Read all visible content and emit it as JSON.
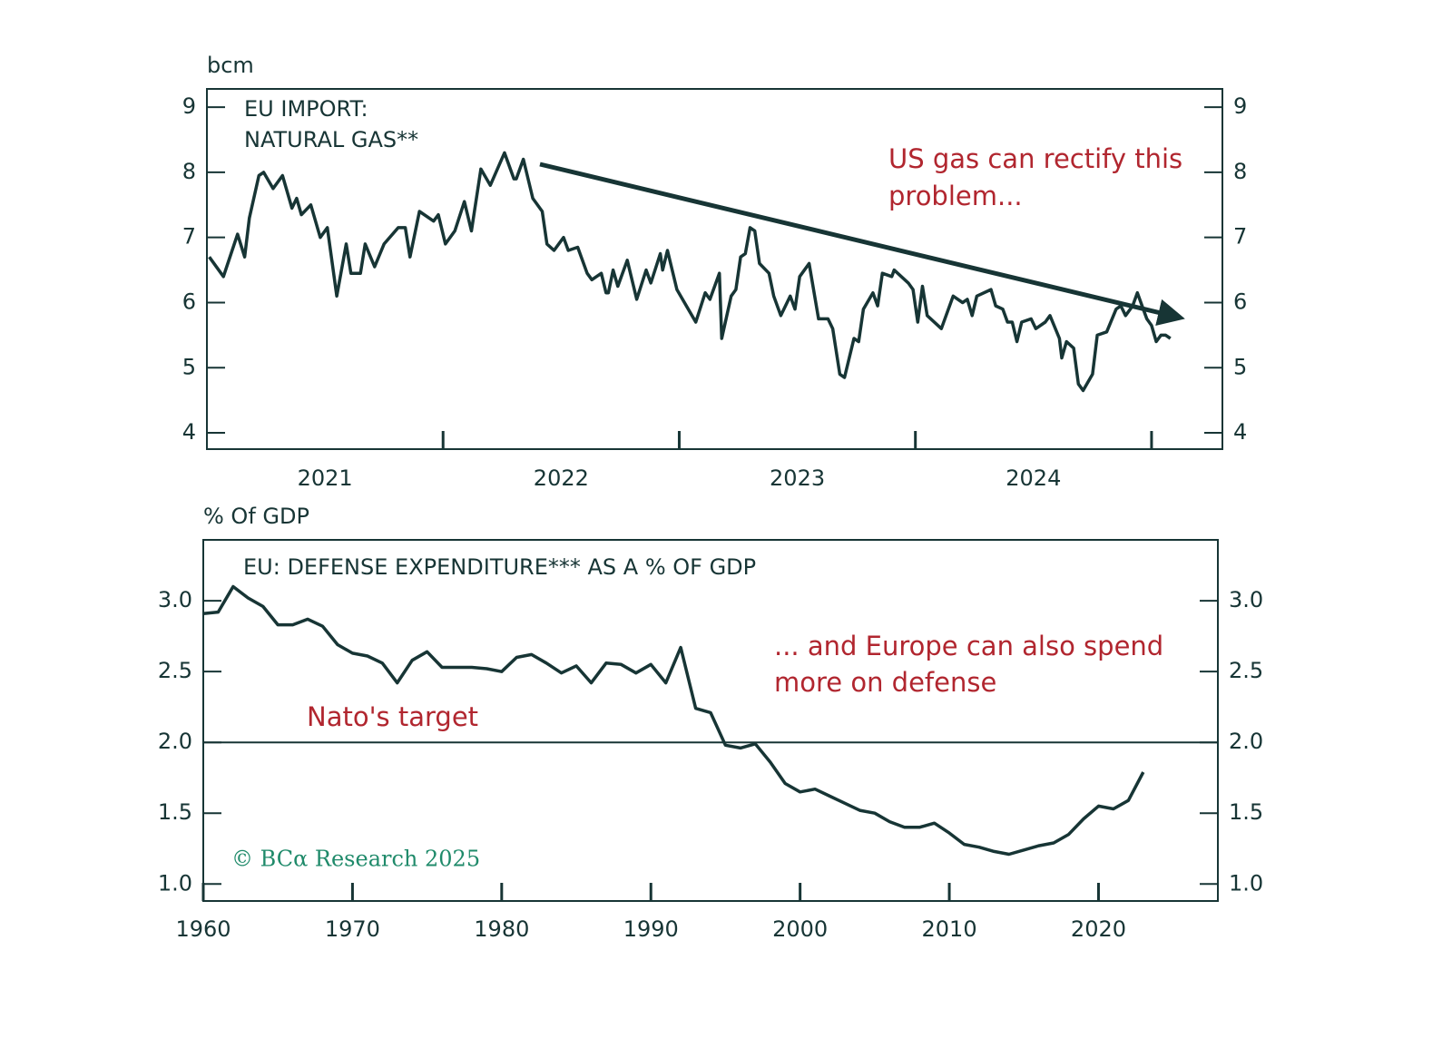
{
  "chart_data": [
    {
      "type": "line",
      "title": [
        "EU IMPORT:",
        "NATURAL GAS**"
      ],
      "y_label": "bcm",
      "annotation": [
        "US gas can rectify this",
        "problem..."
      ],
      "color": "#173535",
      "grid": false,
      "mirror_y_axis": true,
      "xlim": [
        2021.0,
        2025.3
      ],
      "ylim": [
        3.75,
        9.28
      ],
      "yticks": [
        4,
        5,
        6,
        7,
        8,
        9
      ],
      "xticks": [
        {
          "value": 2021.5,
          "label": "2021"
        },
        {
          "value": 2022.5,
          "label": "2022"
        },
        {
          "value": 2023.5,
          "label": "2023"
        },
        {
          "value": 2024.5,
          "label": "2024"
        }
      ],
      "xtick_marks": [
        2022,
        2023,
        2024,
        2025
      ],
      "x": [
        2021.01,
        2021.07,
        2021.13,
        2021.16,
        2021.18,
        2021.22,
        2021.24,
        2021.28,
        2021.32,
        2021.36,
        2021.38,
        2021.4,
        2021.44,
        2021.48,
        2021.51,
        2021.55,
        2021.59,
        2021.61,
        2021.65,
        2021.67,
        2021.71,
        2021.75,
        2021.81,
        2021.84,
        2021.86,
        2021.9,
        2021.96,
        2021.98,
        2022.01,
        2022.05,
        2022.09,
        2022.12,
        2022.16,
        2022.2,
        2022.26,
        2022.3,
        2022.31,
        2022.34,
        2022.38,
        2022.42,
        2022.44,
        2022.47,
        2022.51,
        2022.53,
        2022.57,
        2022.61,
        2022.63,
        2022.67,
        2022.69,
        2022.7,
        2022.72,
        2022.74,
        2022.78,
        2022.82,
        2022.86,
        2022.88,
        2022.92,
        2022.93,
        2022.95,
        2022.99,
        2023.07,
        2023.11,
        2023.13,
        2023.17,
        2023.18,
        2023.22,
        2023.24,
        2023.26,
        2023.28,
        2023.3,
        2023.32,
        2023.34,
        2023.38,
        2023.4,
        2023.43,
        2023.47,
        2023.49,
        2023.51,
        2023.55,
        2023.59,
        2023.63,
        2023.65,
        2023.68,
        2023.7,
        2023.74,
        2023.76,
        2023.78,
        2023.82,
        2023.84,
        2023.86,
        2023.9,
        2023.91,
        2023.97,
        2023.99,
        2024.01,
        2024.03,
        2024.05,
        2024.11,
        2024.16,
        2024.2,
        2024.22,
        2024.24,
        2024.26,
        2024.32,
        2024.34,
        2024.37,
        2024.39,
        2024.41,
        2024.43,
        2024.45,
        2024.49,
        2024.51,
        2024.55,
        2024.57,
        2024.61,
        2024.62,
        2024.64,
        2024.67,
        2024.69,
        2024.71,
        2024.75,
        2024.77,
        2024.81,
        2024.85,
        2024.87,
        2024.89,
        2024.92,
        2024.94,
        2024.96,
        2024.98,
        2025.0,
        2025.02,
        2025.04,
        2025.06,
        2025.08
      ],
      "values": [
        6.7,
        6.4,
        7.05,
        6.7,
        7.3,
        7.95,
        8.0,
        7.75,
        7.95,
        7.45,
        7.6,
        7.35,
        7.5,
        7.0,
        7.15,
        6.1,
        6.9,
        6.45,
        6.45,
        6.9,
        6.55,
        6.9,
        7.15,
        7.15,
        6.7,
        7.4,
        7.25,
        7.35,
        6.9,
        7.1,
        7.55,
        7.1,
        8.05,
        7.8,
        8.3,
        7.9,
        7.9,
        8.2,
        7.6,
        7.4,
        6.9,
        6.8,
        7.0,
        6.8,
        6.85,
        6.45,
        6.35,
        6.45,
        6.15,
        6.15,
        6.5,
        6.25,
        6.65,
        6.05,
        6.5,
        6.3,
        6.75,
        6.5,
        6.8,
        6.2,
        5.7,
        6.15,
        6.05,
        6.45,
        5.45,
        6.1,
        6.2,
        6.7,
        6.75,
        7.15,
        7.1,
        6.6,
        6.45,
        6.1,
        5.8,
        6.1,
        5.9,
        6.4,
        6.6,
        5.75,
        5.75,
        5.6,
        4.9,
        4.85,
        5.45,
        5.4,
        5.9,
        6.15,
        5.95,
        6.45,
        6.4,
        6.5,
        6.3,
        6.2,
        5.7,
        6.25,
        5.8,
        5.6,
        6.1,
        6.0,
        6.05,
        5.8,
        6.1,
        6.2,
        5.95,
        5.9,
        5.7,
        5.7,
        5.4,
        5.7,
        5.75,
        5.6,
        5.7,
        5.8,
        5.45,
        5.15,
        5.4,
        5.3,
        4.75,
        4.65,
        4.9,
        5.5,
        5.55,
        5.9,
        5.95,
        5.8,
        5.95,
        6.15,
        5.95,
        5.75,
        5.65,
        5.4,
        5.5,
        5.5,
        5.45
      ]
    },
    {
      "type": "line",
      "title": [
        "EU: DEFENSE EXPENDITURE*** AS A % OF GDP"
      ],
      "y_label": "% Of GDP",
      "annotation": [
        "... and Europe can also spend",
        "more on defense"
      ],
      "reference_line": {
        "value": 2.0,
        "label": "Nato's target"
      },
      "color": "#173535",
      "grid": false,
      "mirror_y_axis": true,
      "xlim": [
        1960,
        2028
      ],
      "ylim": [
        0.88,
        3.43
      ],
      "yticks": [
        {
          "value": 1.0,
          "label": "1.0"
        },
        1.5,
        {
          "value": 2.0,
          "label": "2.0"
        },
        2.5,
        {
          "value": 3.0,
          "label": "3.0"
        }
      ],
      "xticks": [
        1960,
        1970,
        1980,
        1990,
        2000,
        2010,
        2020
      ],
      "xtick_marks": [
        1960,
        1970,
        1980,
        1990,
        2000,
        2010,
        2020
      ],
      "x": [
        1960,
        1961,
        1962,
        1963,
        1964,
        1965,
        1966,
        1967,
        1968,
        1969,
        1970,
        1971,
        1972,
        1973,
        1974,
        1975,
        1976,
        1977,
        1978,
        1979,
        1980,
        1981,
        1982,
        1983,
        1984,
        1985,
        1986,
        1987,
        1988,
        1989,
        1990,
        1991,
        1992,
        1993,
        1994,
        1995,
        1996,
        1997,
        1998,
        1999,
        2000,
        2001,
        2002,
        2003,
        2004,
        2005,
        2006,
        2007,
        2008,
        2009,
        2010,
        2011,
        2012,
        2013,
        2014,
        2015,
        2016,
        2017,
        2018,
        2019,
        2020,
        2021,
        2022,
        2023
      ],
      "values": [
        2.91,
        2.92,
        3.1,
        3.02,
        2.96,
        2.83,
        2.83,
        2.87,
        2.82,
        2.69,
        2.63,
        2.61,
        2.56,
        2.42,
        2.58,
        2.64,
        2.53,
        2.53,
        2.53,
        2.52,
        2.5,
        2.6,
        2.62,
        2.56,
        2.49,
        2.54,
        2.42,
        2.56,
        2.55,
        2.49,
        2.55,
        2.42,
        2.67,
        2.24,
        2.21,
        1.98,
        1.96,
        1.99,
        1.86,
        1.71,
        1.65,
        1.67,
        1.62,
        1.57,
        1.52,
        1.5,
        1.44,
        1.4,
        1.4,
        1.43,
        1.36,
        1.28,
        1.26,
        1.23,
        1.21,
        1.24,
        1.27,
        1.29,
        1.35,
        1.46,
        1.55,
        1.53,
        1.59,
        1.79
      ]
    }
  ],
  "footer": "© BCα Research 2025"
}
